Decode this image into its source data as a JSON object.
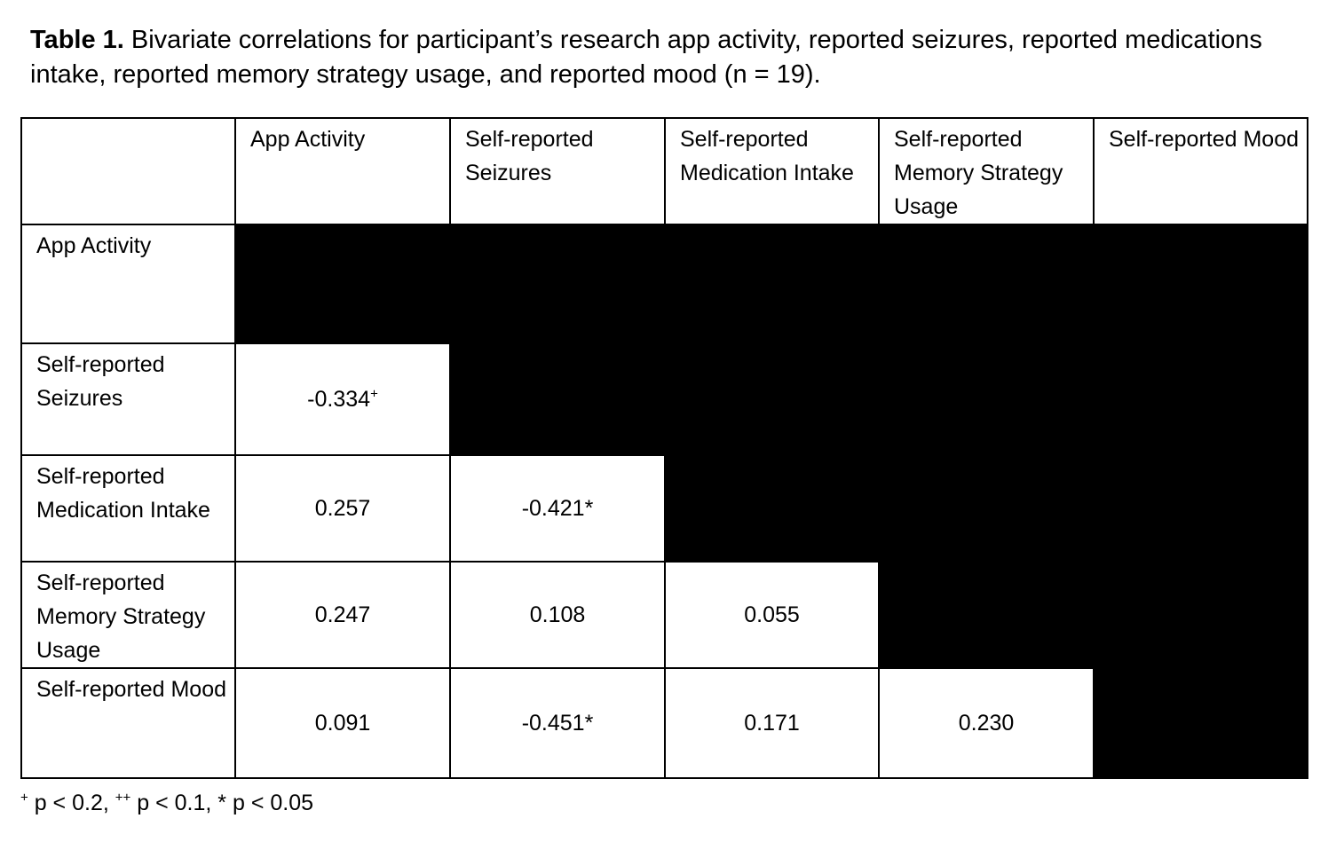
{
  "title": {
    "label": "Table 1.",
    "text": " Bivariate correlations for participant’s research app activity, reported seizures, reported medications intake, reported memory strategy usage, and reported mood (n = 19)."
  },
  "table": {
    "column_headers": [
      "",
      "App Activity",
      "Self-reported Seizures",
      "Self-reported Medication Intake",
      "Self-reported Memory Strategy Usage",
      "Self-reported Mood"
    ],
    "rows": [
      {
        "header": "App Activity",
        "values": []
      },
      {
        "header": "Self-reported Seizures",
        "values": [
          {
            "text": "-0.334",
            "sup": "+"
          }
        ]
      },
      {
        "header": "Self-reported Medication Intake",
        "values": [
          {
            "text": "0.257"
          },
          {
            "text": "-0.421*"
          }
        ]
      },
      {
        "header": "Self-reported Memory Strategy Usage",
        "values": [
          {
            "text": "0.247"
          },
          {
            "text": "0.108"
          },
          {
            "text": "0.055"
          }
        ]
      },
      {
        "header": "Self-reported Mood",
        "values": [
          {
            "text": "0.091"
          },
          {
            "text": "-0.451*"
          },
          {
            "text": "0.171"
          },
          {
            "text": "0.230"
          }
        ]
      }
    ],
    "blackout_color": "#000000"
  },
  "footnote": {
    "segments": [
      {
        "sup": "+",
        "text": " p < 0.2, "
      },
      {
        "sup": "++",
        "text": " p < 0.1, "
      },
      {
        "sup": "",
        "text": "* p < 0.05"
      }
    ]
  }
}
